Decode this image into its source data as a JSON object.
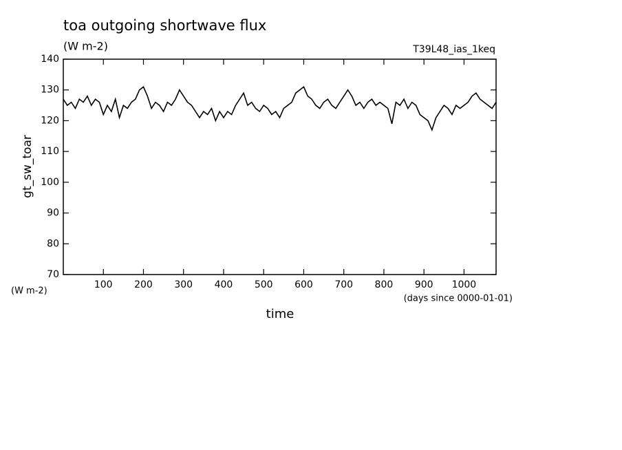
{
  "chart_data": {
    "type": "line",
    "title": "toa outgoing shortwave flux",
    "subtitle": "(W m-2)",
    "run_label": "T39L48_ias_1keq",
    "y_label": "gt_sw_toar",
    "y_unit": "(W m-2)",
    "x_label": "time",
    "x_unit": "(days since 0000-01-01)",
    "xlim": [
      0,
      1080
    ],
    "ylim": [
      70,
      140
    ],
    "xticks": [
      100,
      200,
      300,
      400,
      500,
      600,
      700,
      800,
      900,
      1000
    ],
    "yticks": [
      70,
      80,
      90,
      100,
      110,
      120,
      130,
      140
    ],
    "x": [
      0,
      10,
      20,
      30,
      40,
      50,
      60,
      70,
      80,
      90,
      100,
      110,
      120,
      130,
      140,
      150,
      160,
      170,
      180,
      190,
      200,
      210,
      220,
      230,
      240,
      250,
      260,
      270,
      280,
      290,
      300,
      310,
      320,
      330,
      340,
      350,
      360,
      370,
      380,
      390,
      400,
      410,
      420,
      430,
      440,
      450,
      460,
      470,
      480,
      490,
      500,
      510,
      520,
      530,
      540,
      550,
      560,
      570,
      580,
      590,
      600,
      610,
      620,
      630,
      640,
      650,
      660,
      670,
      680,
      690,
      700,
      710,
      720,
      730,
      740,
      750,
      760,
      770,
      780,
      790,
      800,
      810,
      820,
      830,
      840,
      850,
      860,
      870,
      880,
      890,
      900,
      910,
      920,
      930,
      940,
      950,
      960,
      970,
      980,
      990,
      1000,
      1010,
      1020,
      1030,
      1040,
      1050,
      1060,
      1070,
      1080
    ],
    "series": [
      {
        "name": "gt_sw_toar",
        "color": "#000000",
        "values": [
          127,
          125,
          126,
          124,
          127,
          126,
          128,
          125,
          127,
          126,
          122,
          125,
          123,
          127,
          121,
          125,
          124,
          126,
          127,
          130,
          131,
          128,
          124,
          126,
          125,
          123,
          126,
          125,
          127,
          130,
          128,
          126,
          125,
          123,
          121,
          123,
          122,
          124,
          120,
          123,
          121,
          123,
          122,
          125,
          127,
          129,
          125,
          126,
          124,
          123,
          125,
          124,
          122,
          123,
          121,
          124,
          125,
          126,
          129,
          130,
          131,
          128,
          127,
          125,
          124,
          126,
          127,
          125,
          124,
          126,
          128,
          130,
          128,
          125,
          126,
          124,
          126,
          127,
          125,
          126,
          125,
          124,
          119,
          126,
          125,
          127,
          124,
          126,
          125,
          122,
          121,
          120,
          117,
          121,
          123,
          125,
          124,
          122,
          125,
          124,
          125,
          126,
          128,
          129,
          127,
          126,
          125,
          124,
          126
        ]
      }
    ]
  }
}
